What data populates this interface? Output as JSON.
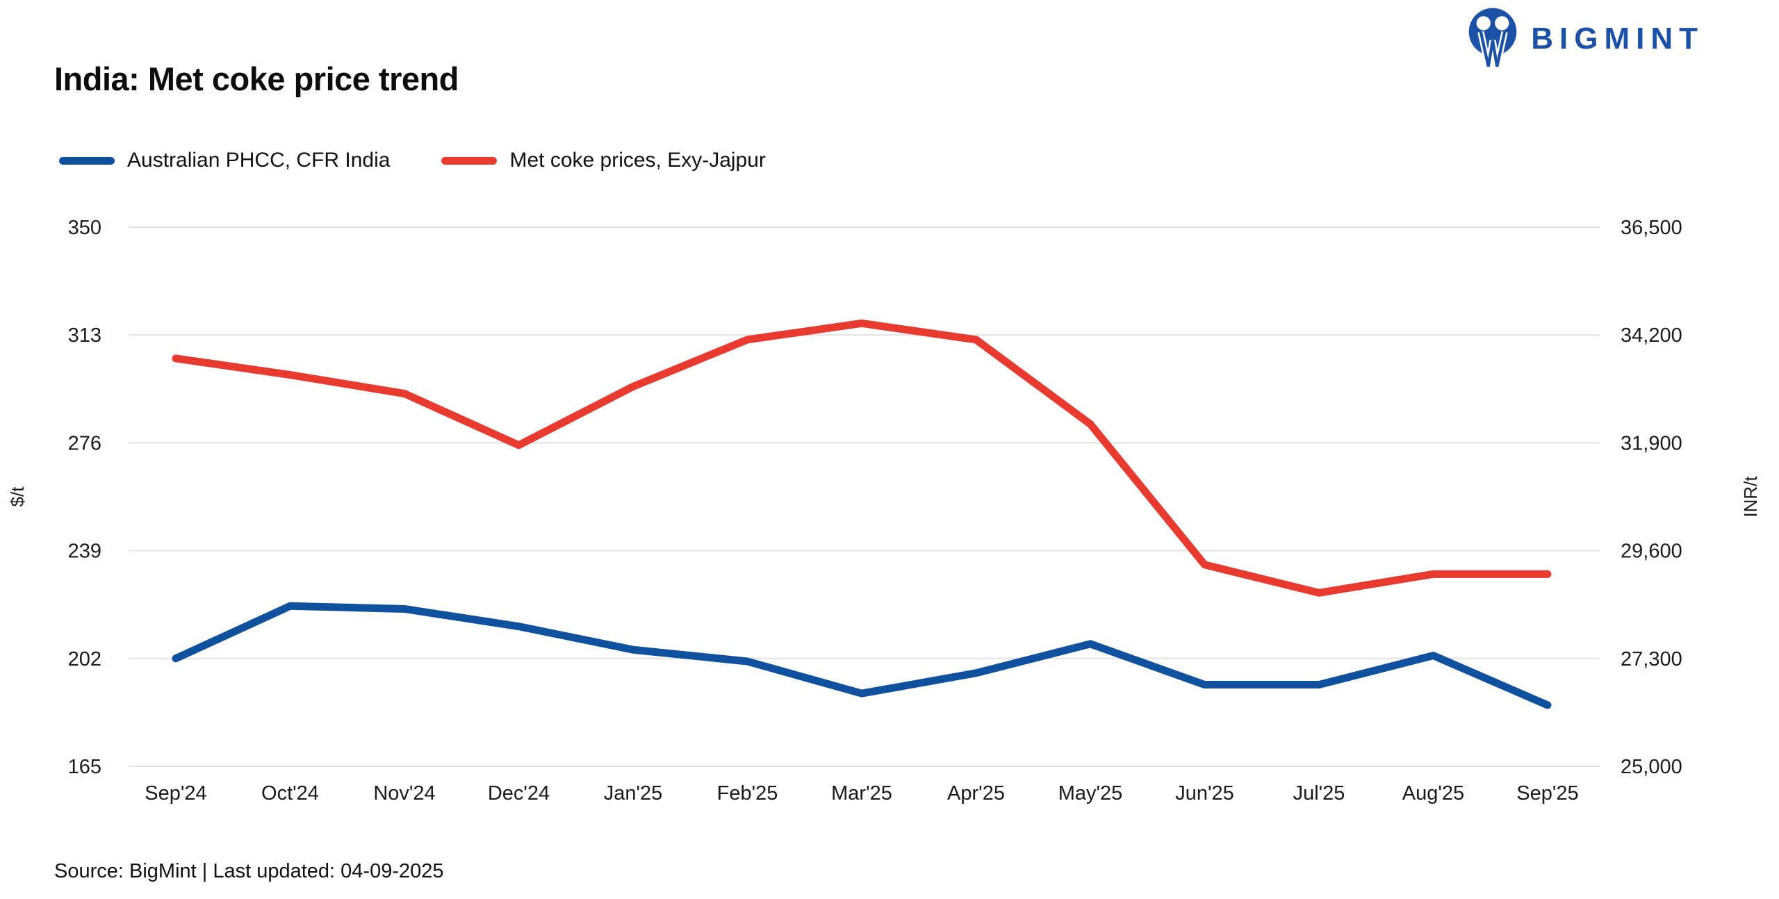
{
  "logo": {
    "text": "BIGMINT",
    "color": "#1B52A8"
  },
  "header": {
    "title": "India: Met coke price trend"
  },
  "legend": [
    {
      "label": "Australian PHCC, CFR India",
      "color": "#10519F"
    },
    {
      "label": "Met coke prices, Exy-Jajpur",
      "color": "#E93A30"
    }
  ],
  "footer": {
    "source_line": "Source: BigMint | Last updated: 04-09-2025"
  },
  "chart_data": {
    "type": "line",
    "title": "India: Met coke price trend",
    "categories": [
      "Sep'24",
      "Oct'24",
      "Nov'24",
      "Dec'24",
      "Jan'25",
      "Feb'25",
      "Mar'25",
      "Apr'25",
      "May'25",
      "Jun'25",
      "Jul'25",
      "Aug'25",
      "Sep'25"
    ],
    "series": [
      {
        "name": "Australian PHCC, CFR India",
        "axis": "left",
        "color": "#10519F",
        "values": [
          202,
          220,
          219,
          213,
          205,
          201,
          190,
          197,
          207,
          193,
          193,
          203,
          186
        ]
      },
      {
        "name": "Met coke prices, Exy-Jajpur",
        "axis": "right",
        "color": "#E93A30",
        "values": [
          33700,
          33350,
          32950,
          31850,
          33100,
          34100,
          34450,
          34100,
          32300,
          29300,
          28700,
          29100,
          29100
        ]
      }
    ],
    "left_axis": {
      "label": "$/t",
      "ticks": [
        350,
        313,
        276,
        239,
        202,
        165
      ],
      "min": 165,
      "max": 350
    },
    "right_axis": {
      "label": "INR/t",
      "ticks": [
        36500,
        34200,
        31900,
        29600,
        27300,
        25000
      ],
      "min": 25000,
      "max": 36500
    },
    "grid": true,
    "legend_position": "top-left",
    "gridline_color": "#E2E2E2",
    "tick_label_color": "#1a1a1a"
  }
}
